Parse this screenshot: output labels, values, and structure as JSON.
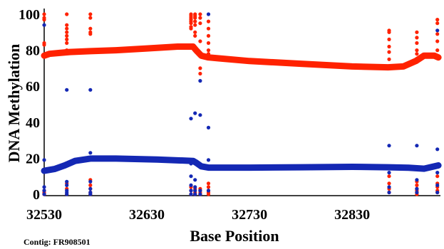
{
  "chart_data": {
    "type": "scatter",
    "title": "",
    "xlabel": "Base Position",
    "ylabel": "DNA Methylation",
    "footnote": "Contig: FR908501",
    "xlim": [
      32530,
      32916
    ],
    "ylim": [
      0,
      100
    ],
    "xticks": [
      32530,
      32630,
      32730,
      32830
    ],
    "yticks": [
      0,
      20,
      40,
      60,
      80,
      100
    ],
    "grid": false,
    "legend": "none",
    "colors": {
      "red": "#ff2200",
      "blue": "#1428b4"
    },
    "series": [
      {
        "kind": "trend",
        "color": "red",
        "x": [
          32530,
          32535,
          32545,
          32555,
          32575,
          32600,
          32630,
          32660,
          32675,
          32678,
          32683,
          32690,
          32700,
          32730,
          32780,
          32830,
          32865,
          32880,
          32892,
          32900,
          32910,
          32914
        ],
        "y": [
          77,
          78,
          78.5,
          79,
          79.5,
          80,
          81,
          82,
          82,
          80,
          77,
          76,
          75.5,
          74,
          72.5,
          71,
          70.5,
          71,
          74,
          77,
          77,
          76
        ]
      },
      {
        "kind": "trend",
        "color": "blue",
        "x": [
          32530,
          32540,
          32550,
          32560,
          32575,
          32600,
          32640,
          32675,
          32678,
          32683,
          32690,
          32730,
          32780,
          32830,
          32865,
          32885,
          32900,
          32914
        ],
        "y": [
          13,
          14,
          16,
          18.5,
          19.8,
          19.8,
          19.3,
          18.5,
          17.5,
          15.5,
          14.8,
          14.8,
          15,
          15.2,
          15,
          14.7,
          14.2,
          16
        ]
      },
      {
        "kind": "points",
        "color": "red",
        "x": [
          32530,
          32530,
          32530,
          32530,
          32530,
          32530,
          32530,
          32530,
          32530,
          32530,
          32530,
          32552,
          32552,
          32552,
          32552,
          32552,
          32552,
          32552,
          32552,
          32552,
          32552,
          32552,
          32575,
          32575,
          32575,
          32575,
          32575,
          32575,
          32575,
          32575,
          32575,
          32575,
          32575,
          32673,
          32673,
          32673,
          32673,
          32673,
          32673,
          32673,
          32673,
          32673,
          32673,
          32673,
          32677,
          32677,
          32677,
          32677,
          32677,
          32677,
          32677,
          32677,
          32677,
          32677,
          32677,
          32682,
          32682,
          32682,
          32682,
          32682,
          32682,
          32682,
          32682,
          32682,
          32682,
          32682,
          32690,
          32690,
          32690,
          32690,
          32690,
          32690,
          32690,
          32690,
          32690,
          32690,
          32690,
          32866,
          32866,
          32866,
          32866,
          32866,
          32866,
          32866,
          32866,
          32866,
          32866,
          32866,
          32893,
          32893,
          32893,
          32893,
          32893,
          32893,
          32893,
          32893,
          32893,
          32893,
          32893,
          32913,
          32913,
          32913,
          32913,
          32913,
          32913,
          32913,
          32913,
          32913,
          32913,
          32913
        ],
        "y": [
          100,
          98,
          97,
          84,
          83,
          2,
          1,
          0,
          0,
          0,
          0,
          100,
          94,
          92,
          90,
          88,
          86,
          84,
          80,
          6,
          3,
          0,
          100,
          98,
          92,
          90,
          89,
          80,
          8,
          5,
          3,
          1,
          0,
          100,
          99,
          98,
          97,
          96,
          95,
          93,
          92,
          4,
          2,
          0,
          100,
          99,
          98,
          96,
          94,
          90,
          88,
          3,
          1,
          0,
          0,
          100,
          98,
          95,
          85,
          70,
          67,
          3,
          2,
          1,
          0,
          0,
          96,
          92,
          88,
          84,
          80,
          78,
          6,
          4,
          2,
          1,
          0,
          91,
          90,
          86,
          82,
          79,
          75,
          70,
          10,
          6,
          3,
          1,
          90,
          87,
          84,
          80,
          78,
          7,
          5,
          3,
          2,
          1,
          0,
          97,
          95,
          89,
          85,
          80,
          76,
          10,
          6,
          4,
          2,
          1
        ]
      },
      {
        "kind": "points",
        "color": "blue",
        "x": [
          32530,
          32530,
          32530,
          32530,
          32530,
          32552,
          32552,
          32552,
          32552,
          32552,
          32552,
          32575,
          32575,
          32575,
          32575,
          32575,
          32575,
          32673,
          32673,
          32673,
          32673,
          32673,
          32673,
          32677,
          32677,
          32677,
          32677,
          32677,
          32682,
          32682,
          32682,
          32682,
          32690,
          32690,
          32690,
          32690,
          32866,
          32866,
          32866,
          32866,
          32893,
          32893,
          32893,
          32893,
          32913,
          32913,
          32913,
          32913,
          32913
        ],
        "y": [
          94,
          19,
          4,
          2,
          0,
          58,
          7,
          5,
          2,
          1,
          0,
          58,
          23,
          7,
          3,
          1,
          0,
          42,
          17,
          10,
          5,
          2,
          0,
          45,
          8,
          4,
          2,
          0,
          44,
          63,
          2,
          0,
          100,
          37,
          19,
          2,
          27,
          12,
          4,
          1,
          27,
          8,
          3,
          1,
          91,
          25,
          12,
          5,
          1
        ]
      }
    ]
  }
}
